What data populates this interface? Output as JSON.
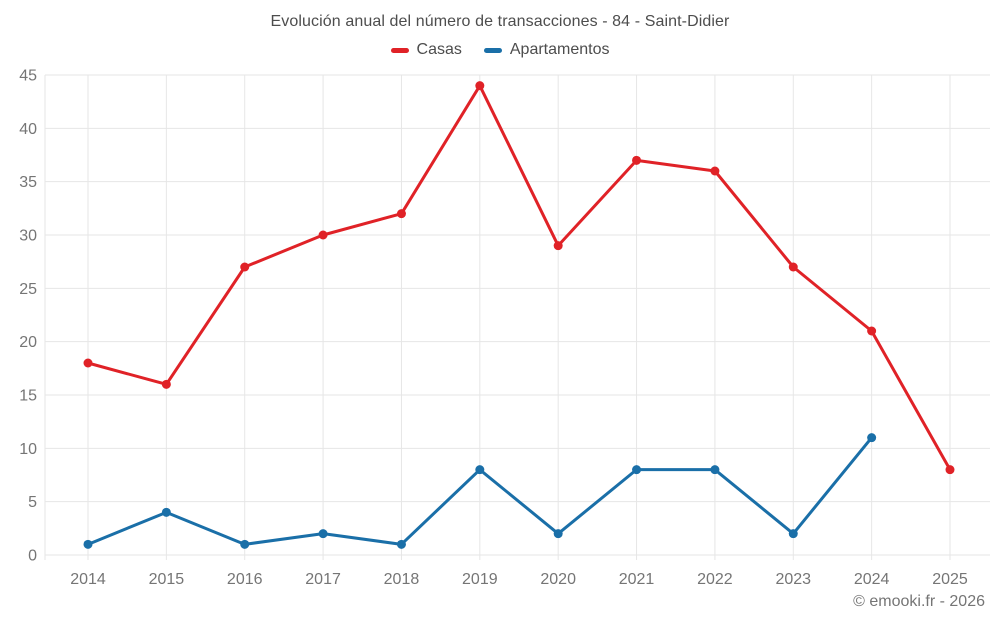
{
  "chart_data": {
    "type": "line",
    "title": "Evolución anual del número de transacciones - 84 - Saint-Didier",
    "categories": [
      "2014",
      "2015",
      "2016",
      "2017",
      "2018",
      "2019",
      "2020",
      "2021",
      "2022",
      "2023",
      "2024",
      "2025"
    ],
    "series": [
      {
        "name": "Casas",
        "color": "#e02227",
        "values": [
          18,
          16,
          27,
          30,
          32,
          44,
          29,
          37,
          36,
          27,
          21,
          8
        ]
      },
      {
        "name": "Apartamentos",
        "color": "#1a6fa8",
        "values": [
          1,
          4,
          1,
          2,
          1,
          8,
          2,
          8,
          8,
          2,
          11,
          null
        ]
      }
    ],
    "xlabel": "",
    "ylabel": "",
    "ylim": [
      0,
      45
    ],
    "ytick_step": 5,
    "grid": true,
    "legend_position": "top"
  },
  "footer": {
    "text": "© emooki.fr - 2026"
  },
  "style": {
    "background": "#ffffff",
    "grid_color": "#e6e6e6",
    "tick_label_color": "#757575",
    "title_color": "#4d4d4d",
    "legend_text_color": "#4d4d4d",
    "footer_color": "#757575"
  }
}
